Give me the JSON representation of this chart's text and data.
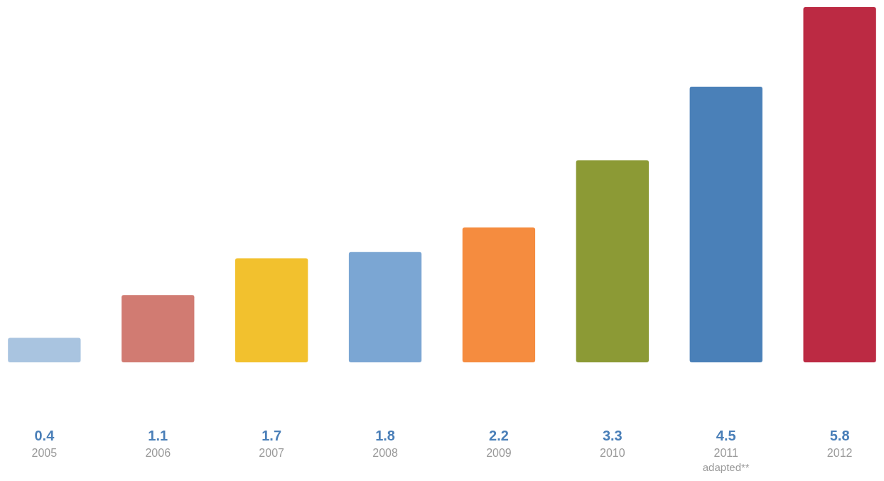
{
  "chart_data": {
    "type": "bar",
    "categories": [
      "2005",
      "2006",
      "2007",
      "2008",
      "2009",
      "2010",
      "2011",
      "2012"
    ],
    "values": [
      0.4,
      1.1,
      1.7,
      1.8,
      2.2,
      3.3,
      4.5,
      5.8
    ],
    "colors": [
      "#a9c4e0",
      "#d17b72",
      "#f2c12e",
      "#7ba6d3",
      "#f58c3f",
      "#8c9a35",
      "#4a80b8",
      "#bc2a43"
    ],
    "data_labels": true,
    "annotations": [
      "adapted**"
    ]
  }
}
